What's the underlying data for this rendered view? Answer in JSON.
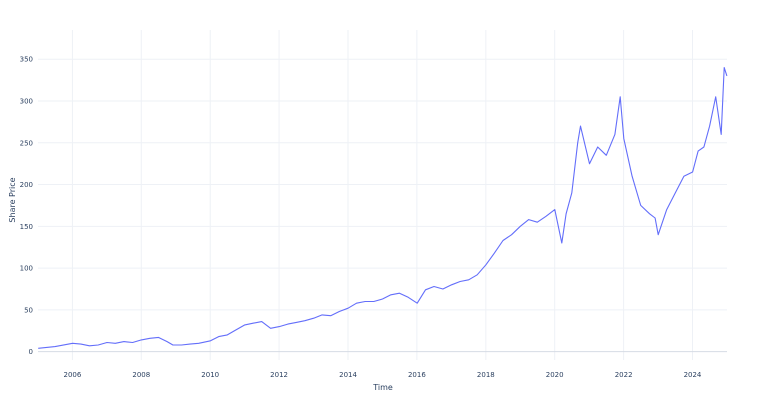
{
  "chart_data": {
    "type": "line",
    "title": "",
    "xlabel": "Time",
    "ylabel": "Share Price",
    "xlim": [
      "2005-01-01",
      "2025-01-01"
    ],
    "ylim": [
      -10,
      385
    ],
    "x_ticks": [
      "2006",
      "2008",
      "2010",
      "2012",
      "2014",
      "2016",
      "2018",
      "2020",
      "2022",
      "2024"
    ],
    "y_ticks": [
      0,
      50,
      100,
      150,
      200,
      250,
      300,
      350
    ],
    "grid": true,
    "legend": "none",
    "color": "#636efa",
    "series": [
      {
        "x": [
          "2005-01-03",
          "2005-07-01",
          "2006-01-03",
          "2006-04-01",
          "2006-07-01",
          "2006-10-01",
          "2007-01-03",
          "2007-04-01",
          "2007-07-02",
          "2007-10-01",
          "2008-01-02",
          "2008-04-01",
          "2008-07-01",
          "2008-10-01",
          "2008-12-01",
          "2009-03-02",
          "2009-06-01",
          "2009-09-01",
          "2010-01-04",
          "2010-04-01",
          "2010-07-01",
          "2010-10-01",
          "2011-01-03",
          "2011-04-01",
          "2011-07-01",
          "2011-10-03",
          "2012-01-03",
          "2012-04-02",
          "2012-07-02",
          "2012-10-01",
          "2013-01-02",
          "2013-04-01",
          "2013-07-01",
          "2013-10-01",
          "2014-01-02",
          "2014-04-01",
          "2014-07-01",
          "2014-10-01",
          "2015-01-02",
          "2015-04-01",
          "2015-07-01",
          "2015-10-01",
          "2016-01-04",
          "2016-04-01",
          "2016-07-01",
          "2016-10-03",
          "2017-01-03",
          "2017-04-03",
          "2017-07-03",
          "2017-10-02",
          "2018-01-02",
          "2018-04-02",
          "2018-07-02",
          "2018-10-01",
          "2019-01-02",
          "2019-04-01",
          "2019-07-01",
          "2019-10-01",
          "2020-01-02",
          "2020-03-16",
          "2020-05-01",
          "2020-07-01",
          "2020-09-01",
          "2020-10-01",
          "2021-01-04",
          "2021-04-01",
          "2021-07-01",
          "2021-10-01",
          "2021-11-26",
          "2022-01-03",
          "2022-04-01",
          "2022-07-01",
          "2022-10-03",
          "2022-12-01",
          "2023-01-03",
          "2023-04-03",
          "2023-07-03",
          "2023-10-02",
          "2024-01-02",
          "2024-03-01",
          "2024-05-01",
          "2024-07-01",
          "2024-09-03",
          "2024-11-01",
          "2024-12-02",
          "2024-12-31"
        ],
        "values": [
          4,
          6,
          10,
          9,
          7,
          8,
          11,
          10,
          12,
          11,
          14,
          16,
          17,
          12,
          8,
          8,
          9,
          10,
          13,
          18,
          20,
          26,
          32,
          34,
          36,
          28,
          30,
          33,
          35,
          37,
          40,
          44,
          43,
          48,
          52,
          58,
          60,
          60,
          63,
          68,
          70,
          65,
          58,
          74,
          78,
          75,
          80,
          84,
          86,
          92,
          104,
          118,
          133,
          140,
          150,
          158,
          155,
          162,
          170,
          130,
          165,
          190,
          250,
          270,
          225,
          245,
          235,
          260,
          305,
          255,
          210,
          175,
          165,
          160,
          140,
          170,
          190,
          210,
          215,
          240,
          245,
          270,
          305,
          260,
          340,
          330
        ]
      }
    ]
  }
}
